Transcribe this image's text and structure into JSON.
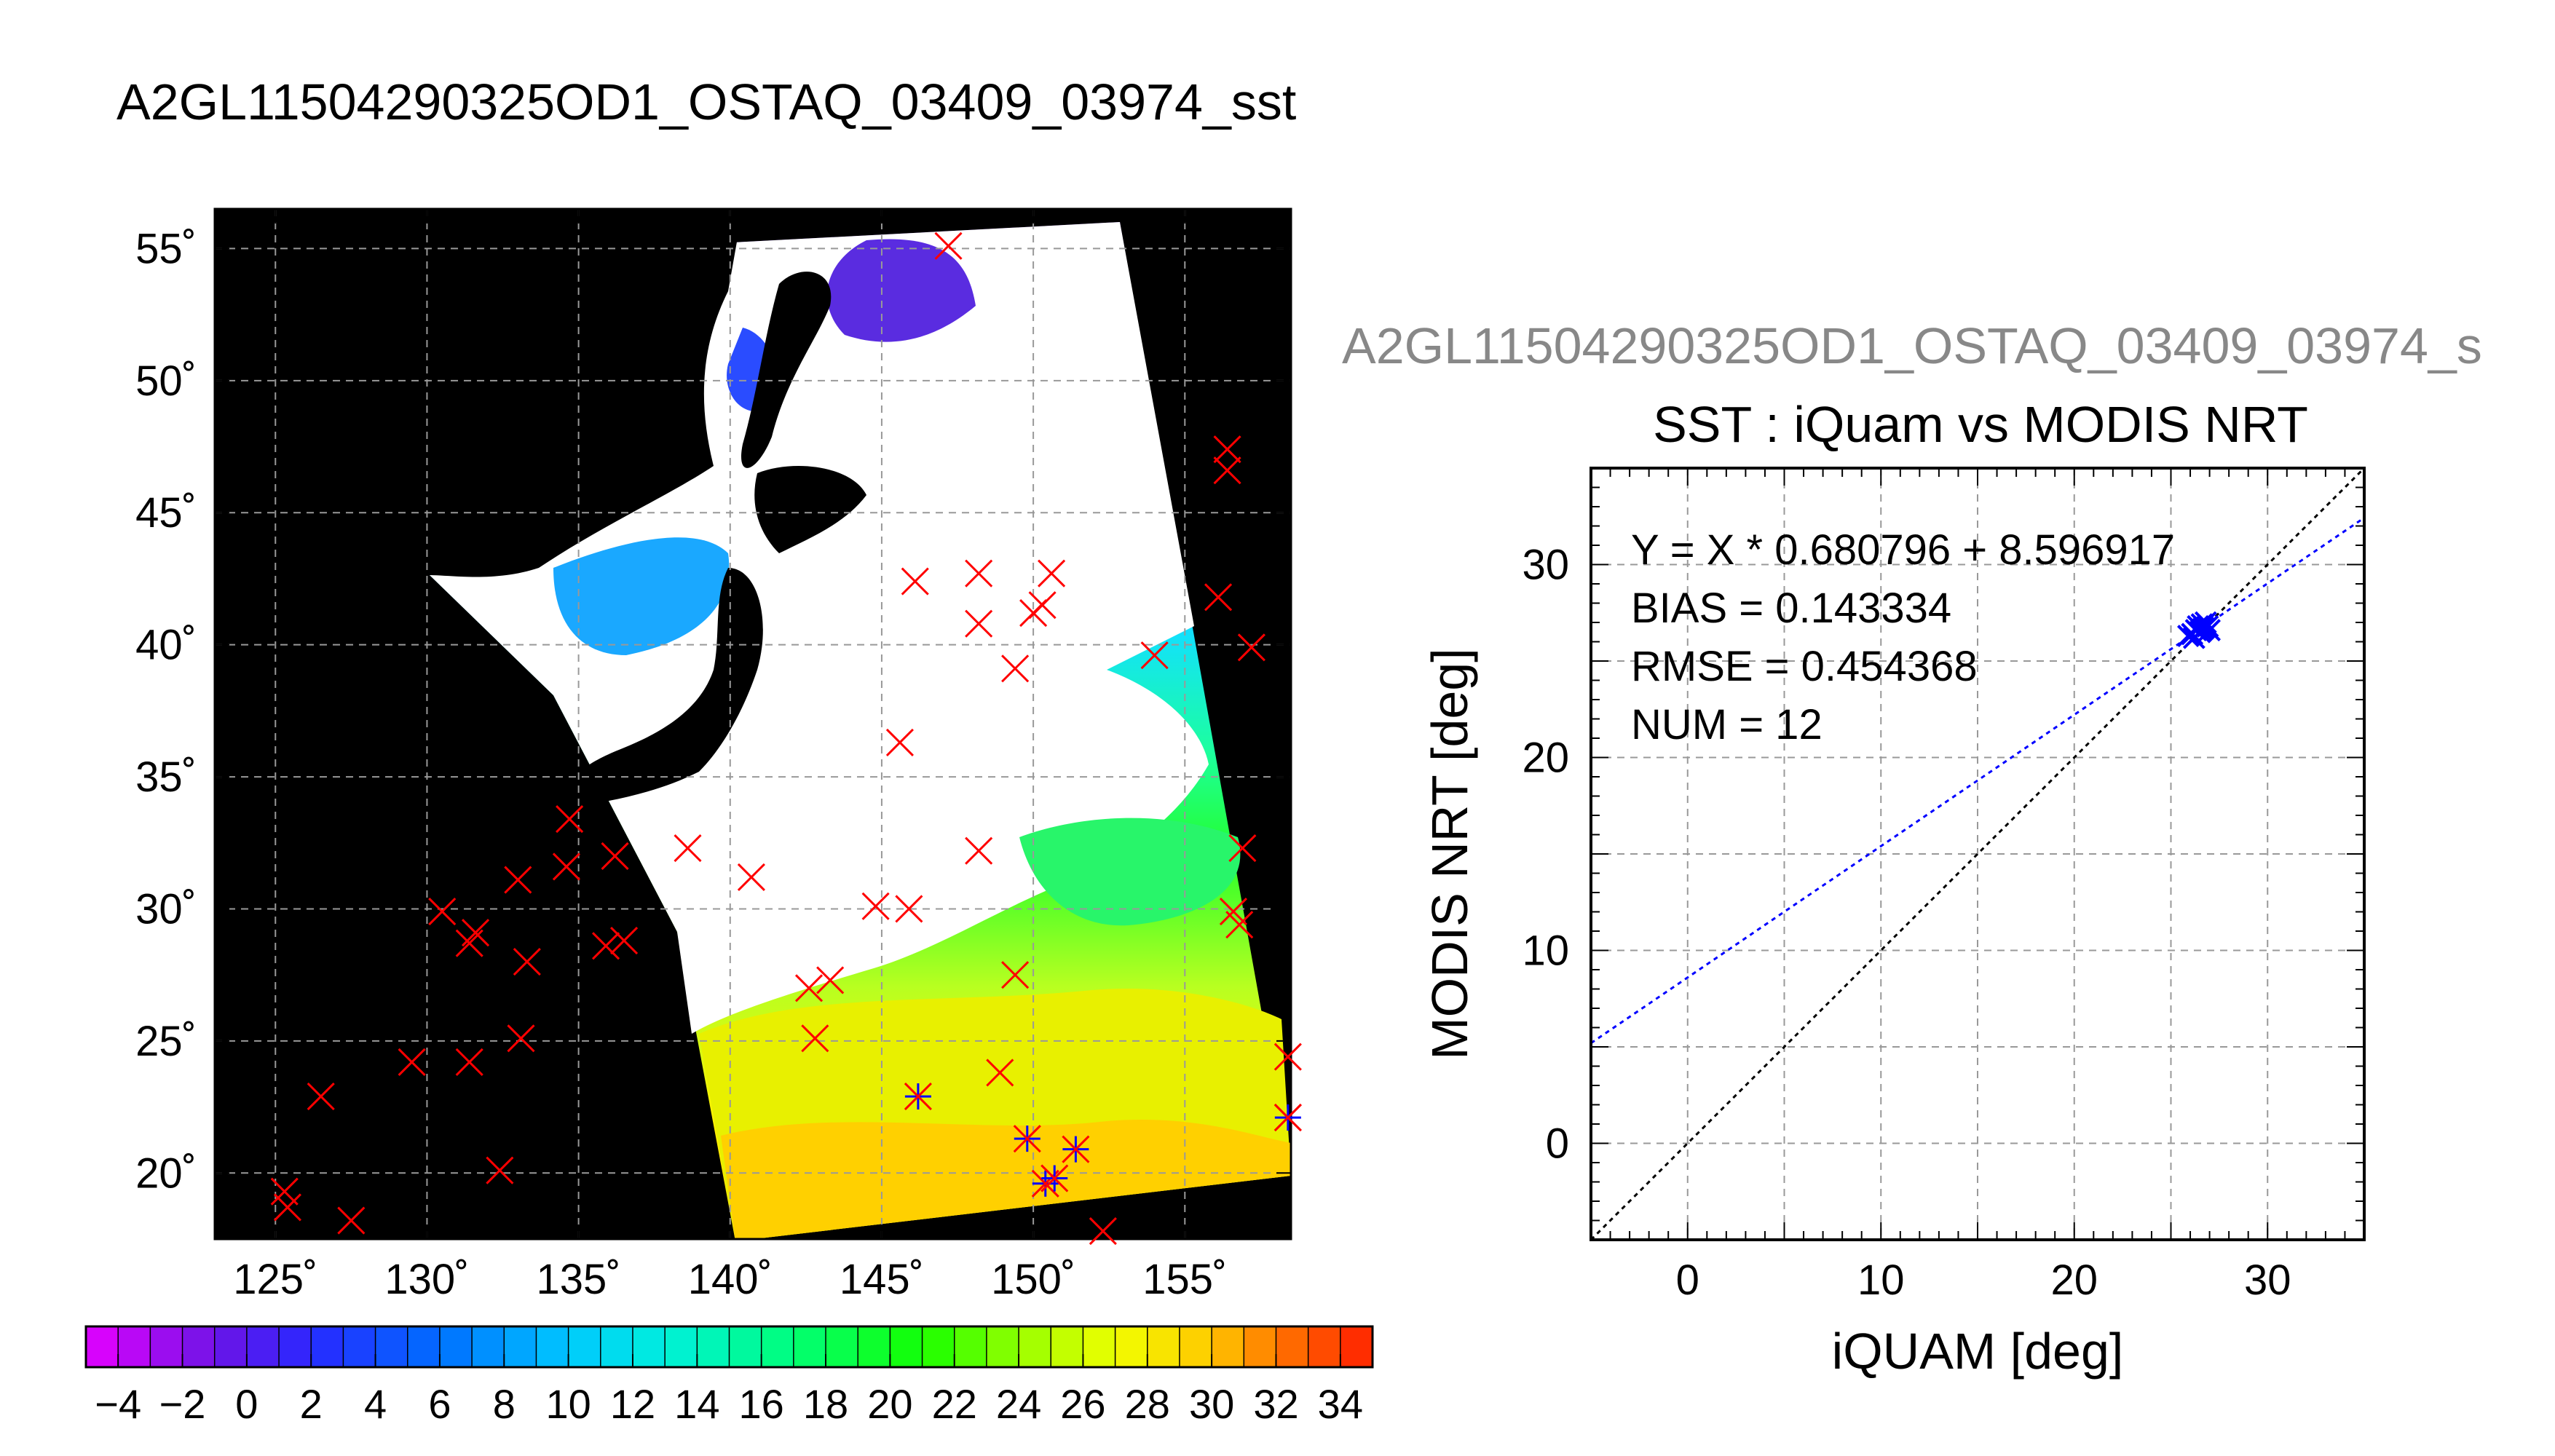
{
  "title": "A2GL11504290325OD1_OSTAQ_03409_03974_sst",
  "map": {
    "lon_ticks": [
      "125˚",
      "130˚",
      "135˚",
      "140˚",
      "145˚",
      "150˚",
      "155˚"
    ],
    "lat_ticks": [
      "20˚",
      "25˚",
      "30˚",
      "35˚",
      "40˚",
      "45˚",
      "50˚",
      "55˚"
    ],
    "lon_range": [
      123,
      158.5
    ],
    "lat_range": [
      17.5,
      56.5
    ],
    "colorbar_ticks": [
      "−4",
      "−2",
      "0",
      "2",
      "4",
      "6",
      "8",
      "10",
      "12",
      "14",
      "16",
      "18",
      "20",
      "22",
      "24",
      "26",
      "28",
      "30",
      "32",
      "34"
    ],
    "colorbar_range": [
      -5,
      35
    ],
    "marker_colors": {
      "outside": "#ff0000",
      "matchup": "#0000ff"
    },
    "buoys_outside": [
      [
        147.2,
        55.1
      ],
      [
        156.4,
        47.4
      ],
      [
        156.4,
        46.6
      ],
      [
        156.1,
        41.8
      ],
      [
        157.2,
        39.9
      ],
      [
        154.0,
        39.6
      ],
      [
        146.1,
        42.4
      ],
      [
        148.2,
        42.7
      ],
      [
        148.2,
        40.8
      ],
      [
        150.0,
        41.2
      ],
      [
        150.3,
        41.5
      ],
      [
        150.6,
        42.7
      ],
      [
        149.4,
        39.1
      ],
      [
        145.6,
        36.3
      ],
      [
        148.2,
        32.2
      ],
      [
        156.9,
        32.3
      ],
      [
        156.6,
        29.9
      ],
      [
        156.8,
        29.4
      ],
      [
        158.4,
        24.4
      ],
      [
        158.4,
        22.1
      ],
      [
        134.7,
        33.4
      ],
      [
        134.6,
        31.6
      ],
      [
        136.2,
        32.0
      ],
      [
        138.6,
        32.3
      ],
      [
        140.7,
        31.2
      ],
      [
        144.8,
        30.1
      ],
      [
        145.9,
        30.0
      ],
      [
        149.4,
        27.5
      ],
      [
        143.3,
        27.3
      ],
      [
        142.6,
        27.0
      ],
      [
        142.8,
        25.1
      ],
      [
        148.9,
        23.8
      ],
      [
        135.9,
        28.6
      ],
      [
        136.5,
        28.8
      ],
      [
        133.3,
        28.0
      ],
      [
        133.0,
        31.1
      ],
      [
        130.5,
        29.9
      ],
      [
        131.6,
        29.1
      ],
      [
        131.4,
        28.7
      ],
      [
        133.1,
        25.1
      ],
      [
        131.4,
        24.2
      ],
      [
        129.5,
        24.2
      ],
      [
        126.5,
        22.9
      ],
      [
        125.3,
        19.3
      ],
      [
        125.4,
        18.7
      ],
      [
        127.5,
        18.2
      ],
      [
        132.4,
        20.1
      ],
      [
        152.3,
        17.8
      ]
    ],
    "buoys_matchup": [
      [
        146.2,
        22.9
      ],
      [
        149.8,
        21.3
      ],
      [
        150.4,
        19.6
      ],
      [
        150.7,
        19.8
      ],
      [
        151.4,
        20.9
      ],
      [
        158.4,
        22.1
      ]
    ]
  },
  "scatter": {
    "header": "A2GL11504290325OD1_OSTAQ_03409_03974_s",
    "title": "SST : iQuam vs MODIS NRT",
    "stats": [
      "Y = X * 0.680796 + 8.596917",
      "BIAS = 0.143334",
      "RMSE = 0.454368",
      "NUM = 12"
    ]
  },
  "chart_data": {
    "type": "scatter",
    "title": "SST : iQuam vs MODIS NRT",
    "xlabel": "iQUAM [deg]",
    "ylabel": "MODIS NRT [deg]",
    "xlim": [
      -5,
      35
    ],
    "ylim": [
      -5,
      35
    ],
    "xticks": [
      "0",
      "10",
      "20",
      "30"
    ],
    "yticks": [
      "0",
      "10",
      "20",
      "30"
    ],
    "grid": true,
    "points": [
      [
        25.9,
        26.3
      ],
      [
        26.1,
        26.4
      ],
      [
        26.3,
        26.6
      ],
      [
        26.4,
        26.8
      ],
      [
        26.5,
        26.5
      ],
      [
        26.6,
        26.9
      ],
      [
        26.7,
        26.7
      ],
      [
        26.8,
        27.0
      ],
      [
        26.9,
        26.8
      ],
      [
        27.0,
        26.6
      ],
      [
        26.2,
        26.2
      ],
      [
        26.6,
        26.6
      ]
    ],
    "fit_line": {
      "slope": 0.680796,
      "intercept": 8.596917,
      "color": "#0000ff"
    },
    "identity_line": {
      "color": "#000000"
    },
    "marker_color": "#0000ff"
  }
}
